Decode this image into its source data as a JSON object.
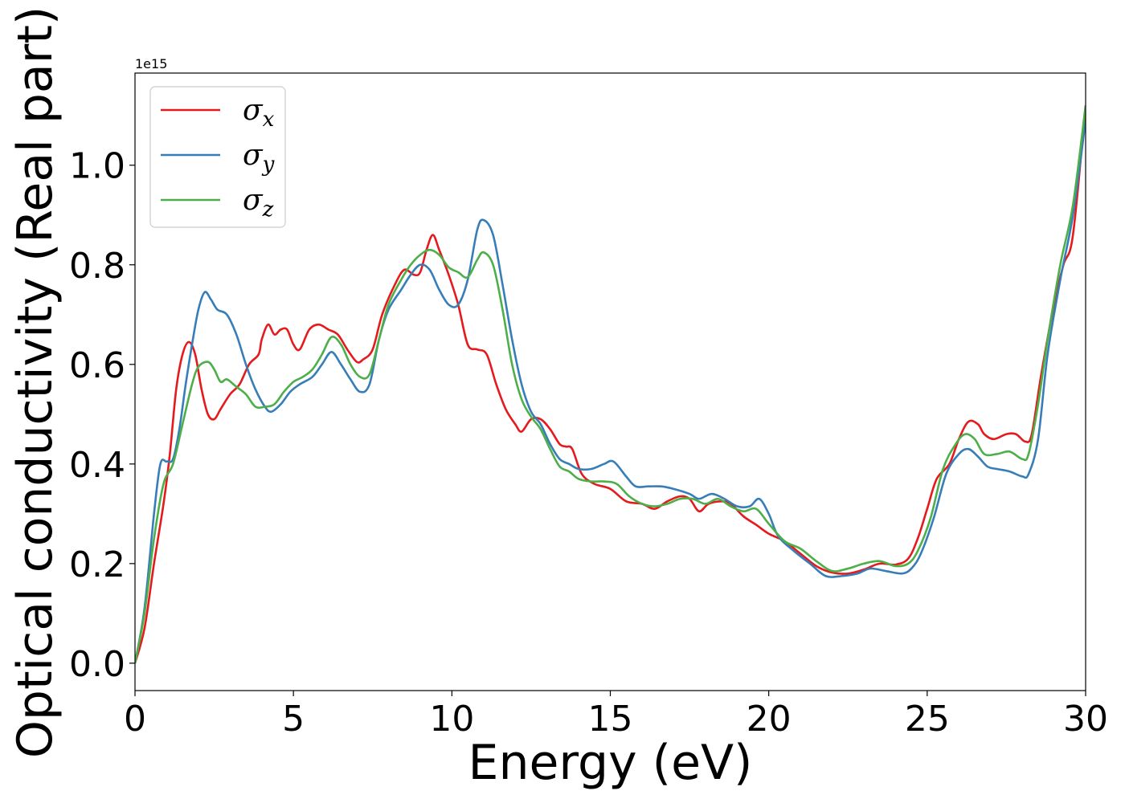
{
  "chart_data": {
    "type": "line",
    "xlabel": "Energy (eV)",
    "ylabel": "Optical conductivity (Real part)",
    "y_offset_label": "1e15",
    "xlim": [
      0,
      30
    ],
    "ylim": [
      -0.055,
      1.185
    ],
    "x_ticks": [
      0,
      5,
      10,
      15,
      20,
      25,
      30
    ],
    "x_tick_labels": [
      "0",
      "5",
      "10",
      "15",
      "20",
      "25",
      "30"
    ],
    "y_ticks": [
      0.0,
      0.2,
      0.4,
      0.6,
      0.8,
      1.0
    ],
    "y_tick_labels": [
      "0.0",
      "0.2",
      "0.4",
      "0.6",
      "0.8",
      "1.0"
    ],
    "grid": false,
    "legend_position": "top-left",
    "series": [
      {
        "name_symbol": "σ",
        "name_sub": "x",
        "color": "#e41a1c",
        "points": [
          [
            0,
            0
          ],
          [
            0.3,
            0.07
          ],
          [
            0.6,
            0.2
          ],
          [
            0.9,
            0.32
          ],
          [
            1.1,
            0.42
          ],
          [
            1.3,
            0.55
          ],
          [
            1.5,
            0.62
          ],
          [
            1.7,
            0.645
          ],
          [
            1.9,
            0.62
          ],
          [
            2.1,
            0.55
          ],
          [
            2.3,
            0.5
          ],
          [
            2.5,
            0.49
          ],
          [
            2.7,
            0.51
          ],
          [
            3.0,
            0.54
          ],
          [
            3.3,
            0.56
          ],
          [
            3.6,
            0.6
          ],
          [
            3.9,
            0.62
          ],
          [
            4.0,
            0.65
          ],
          [
            4.2,
            0.68
          ],
          [
            4.4,
            0.66
          ],
          [
            4.6,
            0.67
          ],
          [
            4.8,
            0.67
          ],
          [
            5.0,
            0.64
          ],
          [
            5.2,
            0.63
          ],
          [
            5.5,
            0.67
          ],
          [
            5.8,
            0.68
          ],
          [
            6.1,
            0.67
          ],
          [
            6.4,
            0.66
          ],
          [
            6.7,
            0.63
          ],
          [
            7.0,
            0.605
          ],
          [
            7.2,
            0.61
          ],
          [
            7.5,
            0.63
          ],
          [
            7.8,
            0.7
          ],
          [
            8.2,
            0.76
          ],
          [
            8.5,
            0.79
          ],
          [
            8.8,
            0.78
          ],
          [
            9.0,
            0.785
          ],
          [
            9.2,
            0.83
          ],
          [
            9.4,
            0.86
          ],
          [
            9.6,
            0.83
          ],
          [
            9.9,
            0.78
          ],
          [
            10.2,
            0.72
          ],
          [
            10.5,
            0.64
          ],
          [
            10.8,
            0.63
          ],
          [
            11.1,
            0.62
          ],
          [
            11.4,
            0.56
          ],
          [
            11.7,
            0.51
          ],
          [
            12.0,
            0.48
          ],
          [
            12.2,
            0.465
          ],
          [
            12.5,
            0.49
          ],
          [
            12.8,
            0.49
          ],
          [
            13.1,
            0.47
          ],
          [
            13.4,
            0.44
          ],
          [
            13.6,
            0.435
          ],
          [
            13.8,
            0.43
          ],
          [
            14.1,
            0.38
          ],
          [
            14.5,
            0.36
          ],
          [
            15.0,
            0.35
          ],
          [
            15.5,
            0.325
          ],
          [
            16.0,
            0.32
          ],
          [
            16.4,
            0.31
          ],
          [
            16.8,
            0.325
          ],
          [
            17.2,
            0.335
          ],
          [
            17.5,
            0.33
          ],
          [
            17.8,
            0.305
          ],
          [
            18.1,
            0.32
          ],
          [
            18.5,
            0.325
          ],
          [
            18.8,
            0.32
          ],
          [
            19.2,
            0.295
          ],
          [
            19.6,
            0.278
          ],
          [
            20.0,
            0.26
          ],
          [
            20.5,
            0.245
          ],
          [
            21.0,
            0.22
          ],
          [
            21.5,
            0.195
          ],
          [
            22.0,
            0.182
          ],
          [
            22.5,
            0.18
          ],
          [
            23.0,
            0.188
          ],
          [
            23.5,
            0.2
          ],
          [
            24.0,
            0.198
          ],
          [
            24.4,
            0.21
          ],
          [
            24.7,
            0.25
          ],
          [
            25.0,
            0.31
          ],
          [
            25.3,
            0.37
          ],
          [
            25.7,
            0.4
          ],
          [
            26.0,
            0.45
          ],
          [
            26.3,
            0.485
          ],
          [
            26.6,
            0.48
          ],
          [
            26.8,
            0.46
          ],
          [
            27.1,
            0.45
          ],
          [
            27.5,
            0.46
          ],
          [
            27.8,
            0.46
          ],
          [
            28.1,
            0.445
          ],
          [
            28.3,
            0.46
          ],
          [
            28.6,
            0.58
          ],
          [
            29.0,
            0.72
          ],
          [
            29.3,
            0.8
          ],
          [
            29.6,
            0.86
          ],
          [
            30.0,
            1.12
          ]
        ]
      },
      {
        "name_symbol": "σ",
        "name_sub": "y",
        "color": "#377eb8",
        "points": [
          [
            0,
            0
          ],
          [
            0.3,
            0.11
          ],
          [
            0.6,
            0.3
          ],
          [
            0.8,
            0.4
          ],
          [
            1.0,
            0.405
          ],
          [
            1.2,
            0.41
          ],
          [
            1.4,
            0.47
          ],
          [
            1.6,
            0.56
          ],
          [
            1.8,
            0.64
          ],
          [
            2.0,
            0.71
          ],
          [
            2.2,
            0.745
          ],
          [
            2.4,
            0.73
          ],
          [
            2.6,
            0.71
          ],
          [
            2.9,
            0.7
          ],
          [
            3.2,
            0.66
          ],
          [
            3.5,
            0.6
          ],
          [
            3.8,
            0.55
          ],
          [
            4.1,
            0.515
          ],
          [
            4.3,
            0.505
          ],
          [
            4.6,
            0.52
          ],
          [
            4.9,
            0.545
          ],
          [
            5.2,
            0.56
          ],
          [
            5.6,
            0.575
          ],
          [
            5.9,
            0.6
          ],
          [
            6.2,
            0.625
          ],
          [
            6.5,
            0.6
          ],
          [
            6.8,
            0.57
          ],
          [
            7.1,
            0.545
          ],
          [
            7.4,
            0.56
          ],
          [
            7.7,
            0.65
          ],
          [
            8.0,
            0.71
          ],
          [
            8.4,
            0.75
          ],
          [
            8.7,
            0.78
          ],
          [
            9.0,
            0.8
          ],
          [
            9.3,
            0.79
          ],
          [
            9.6,
            0.75
          ],
          [
            9.9,
            0.72
          ],
          [
            10.2,
            0.72
          ],
          [
            10.5,
            0.77
          ],
          [
            10.8,
            0.87
          ],
          [
            11.0,
            0.89
          ],
          [
            11.3,
            0.86
          ],
          [
            11.6,
            0.76
          ],
          [
            11.9,
            0.65
          ],
          [
            12.2,
            0.56
          ],
          [
            12.5,
            0.505
          ],
          [
            12.8,
            0.48
          ],
          [
            13.1,
            0.44
          ],
          [
            13.4,
            0.41
          ],
          [
            13.7,
            0.4
          ],
          [
            14.0,
            0.39
          ],
          [
            14.4,
            0.39
          ],
          [
            14.8,
            0.4
          ],
          [
            15.1,
            0.405
          ],
          [
            15.5,
            0.375
          ],
          [
            15.8,
            0.355
          ],
          [
            16.2,
            0.355
          ],
          [
            16.6,
            0.355
          ],
          [
            17.0,
            0.35
          ],
          [
            17.5,
            0.34
          ],
          [
            17.8,
            0.33
          ],
          [
            18.2,
            0.34
          ],
          [
            18.6,
            0.33
          ],
          [
            19.0,
            0.315
          ],
          [
            19.4,
            0.315
          ],
          [
            19.7,
            0.33
          ],
          [
            20.0,
            0.3
          ],
          [
            20.3,
            0.255
          ],
          [
            20.8,
            0.225
          ],
          [
            21.3,
            0.2
          ],
          [
            21.8,
            0.175
          ],
          [
            22.3,
            0.175
          ],
          [
            22.8,
            0.18
          ],
          [
            23.2,
            0.19
          ],
          [
            23.7,
            0.185
          ],
          [
            24.2,
            0.18
          ],
          [
            24.5,
            0.19
          ],
          [
            24.8,
            0.22
          ],
          [
            25.2,
            0.29
          ],
          [
            25.6,
            0.38
          ],
          [
            26.0,
            0.42
          ],
          [
            26.3,
            0.43
          ],
          [
            26.6,
            0.415
          ],
          [
            26.9,
            0.395
          ],
          [
            27.2,
            0.39
          ],
          [
            27.6,
            0.385
          ],
          [
            28.0,
            0.375
          ],
          [
            28.2,
            0.38
          ],
          [
            28.5,
            0.45
          ],
          [
            28.8,
            0.62
          ],
          [
            29.2,
            0.77
          ],
          [
            29.6,
            0.9
          ],
          [
            30.0,
            1.09
          ]
        ]
      },
      {
        "name_symbol": "σ",
        "name_sub": "z",
        "color": "#4daf4a",
        "points": [
          [
            0,
            0
          ],
          [
            0.3,
            0.1
          ],
          [
            0.6,
            0.25
          ],
          [
            0.9,
            0.36
          ],
          [
            1.2,
            0.4
          ],
          [
            1.5,
            0.48
          ],
          [
            1.8,
            0.56
          ],
          [
            2.0,
            0.595
          ],
          [
            2.3,
            0.605
          ],
          [
            2.5,
            0.59
          ],
          [
            2.7,
            0.565
          ],
          [
            2.9,
            0.57
          ],
          [
            3.2,
            0.555
          ],
          [
            3.5,
            0.54
          ],
          [
            3.8,
            0.515
          ],
          [
            4.1,
            0.515
          ],
          [
            4.4,
            0.52
          ],
          [
            4.7,
            0.545
          ],
          [
            5.0,
            0.565
          ],
          [
            5.3,
            0.575
          ],
          [
            5.6,
            0.59
          ],
          [
            5.9,
            0.62
          ],
          [
            6.2,
            0.655
          ],
          [
            6.5,
            0.64
          ],
          [
            6.8,
            0.6
          ],
          [
            7.1,
            0.575
          ],
          [
            7.4,
            0.58
          ],
          [
            7.7,
            0.65
          ],
          [
            8.0,
            0.72
          ],
          [
            8.4,
            0.77
          ],
          [
            8.7,
            0.8
          ],
          [
            9.0,
            0.82
          ],
          [
            9.3,
            0.83
          ],
          [
            9.6,
            0.82
          ],
          [
            9.9,
            0.795
          ],
          [
            10.2,
            0.785
          ],
          [
            10.5,
            0.775
          ],
          [
            10.8,
            0.81
          ],
          [
            11.0,
            0.825
          ],
          [
            11.3,
            0.8
          ],
          [
            11.6,
            0.71
          ],
          [
            11.9,
            0.6
          ],
          [
            12.2,
            0.53
          ],
          [
            12.5,
            0.495
          ],
          [
            12.8,
            0.47
          ],
          [
            13.1,
            0.43
          ],
          [
            13.4,
            0.395
          ],
          [
            13.7,
            0.385
          ],
          [
            14.0,
            0.37
          ],
          [
            14.4,
            0.365
          ],
          [
            14.8,
            0.365
          ],
          [
            15.2,
            0.36
          ],
          [
            15.6,
            0.335
          ],
          [
            16.0,
            0.32
          ],
          [
            16.4,
            0.315
          ],
          [
            16.8,
            0.32
          ],
          [
            17.2,
            0.33
          ],
          [
            17.6,
            0.33
          ],
          [
            18.0,
            0.32
          ],
          [
            18.4,
            0.33
          ],
          [
            18.8,
            0.315
          ],
          [
            19.2,
            0.305
          ],
          [
            19.6,
            0.31
          ],
          [
            20.0,
            0.28
          ],
          [
            20.5,
            0.245
          ],
          [
            21.0,
            0.23
          ],
          [
            21.5,
            0.205
          ],
          [
            22.0,
            0.185
          ],
          [
            22.5,
            0.19
          ],
          [
            23.0,
            0.2
          ],
          [
            23.5,
            0.205
          ],
          [
            24.0,
            0.195
          ],
          [
            24.4,
            0.2
          ],
          [
            24.7,
            0.225
          ],
          [
            25.1,
            0.29
          ],
          [
            25.5,
            0.39
          ],
          [
            25.9,
            0.44
          ],
          [
            26.2,
            0.46
          ],
          [
            26.5,
            0.45
          ],
          [
            26.8,
            0.42
          ],
          [
            27.2,
            0.42
          ],
          [
            27.6,
            0.425
          ],
          [
            28.0,
            0.41
          ],
          [
            28.2,
            0.42
          ],
          [
            28.5,
            0.52
          ],
          [
            28.8,
            0.65
          ],
          [
            29.2,
            0.8
          ],
          [
            29.6,
            0.92
          ],
          [
            30.0,
            1.12
          ]
        ]
      }
    ]
  }
}
